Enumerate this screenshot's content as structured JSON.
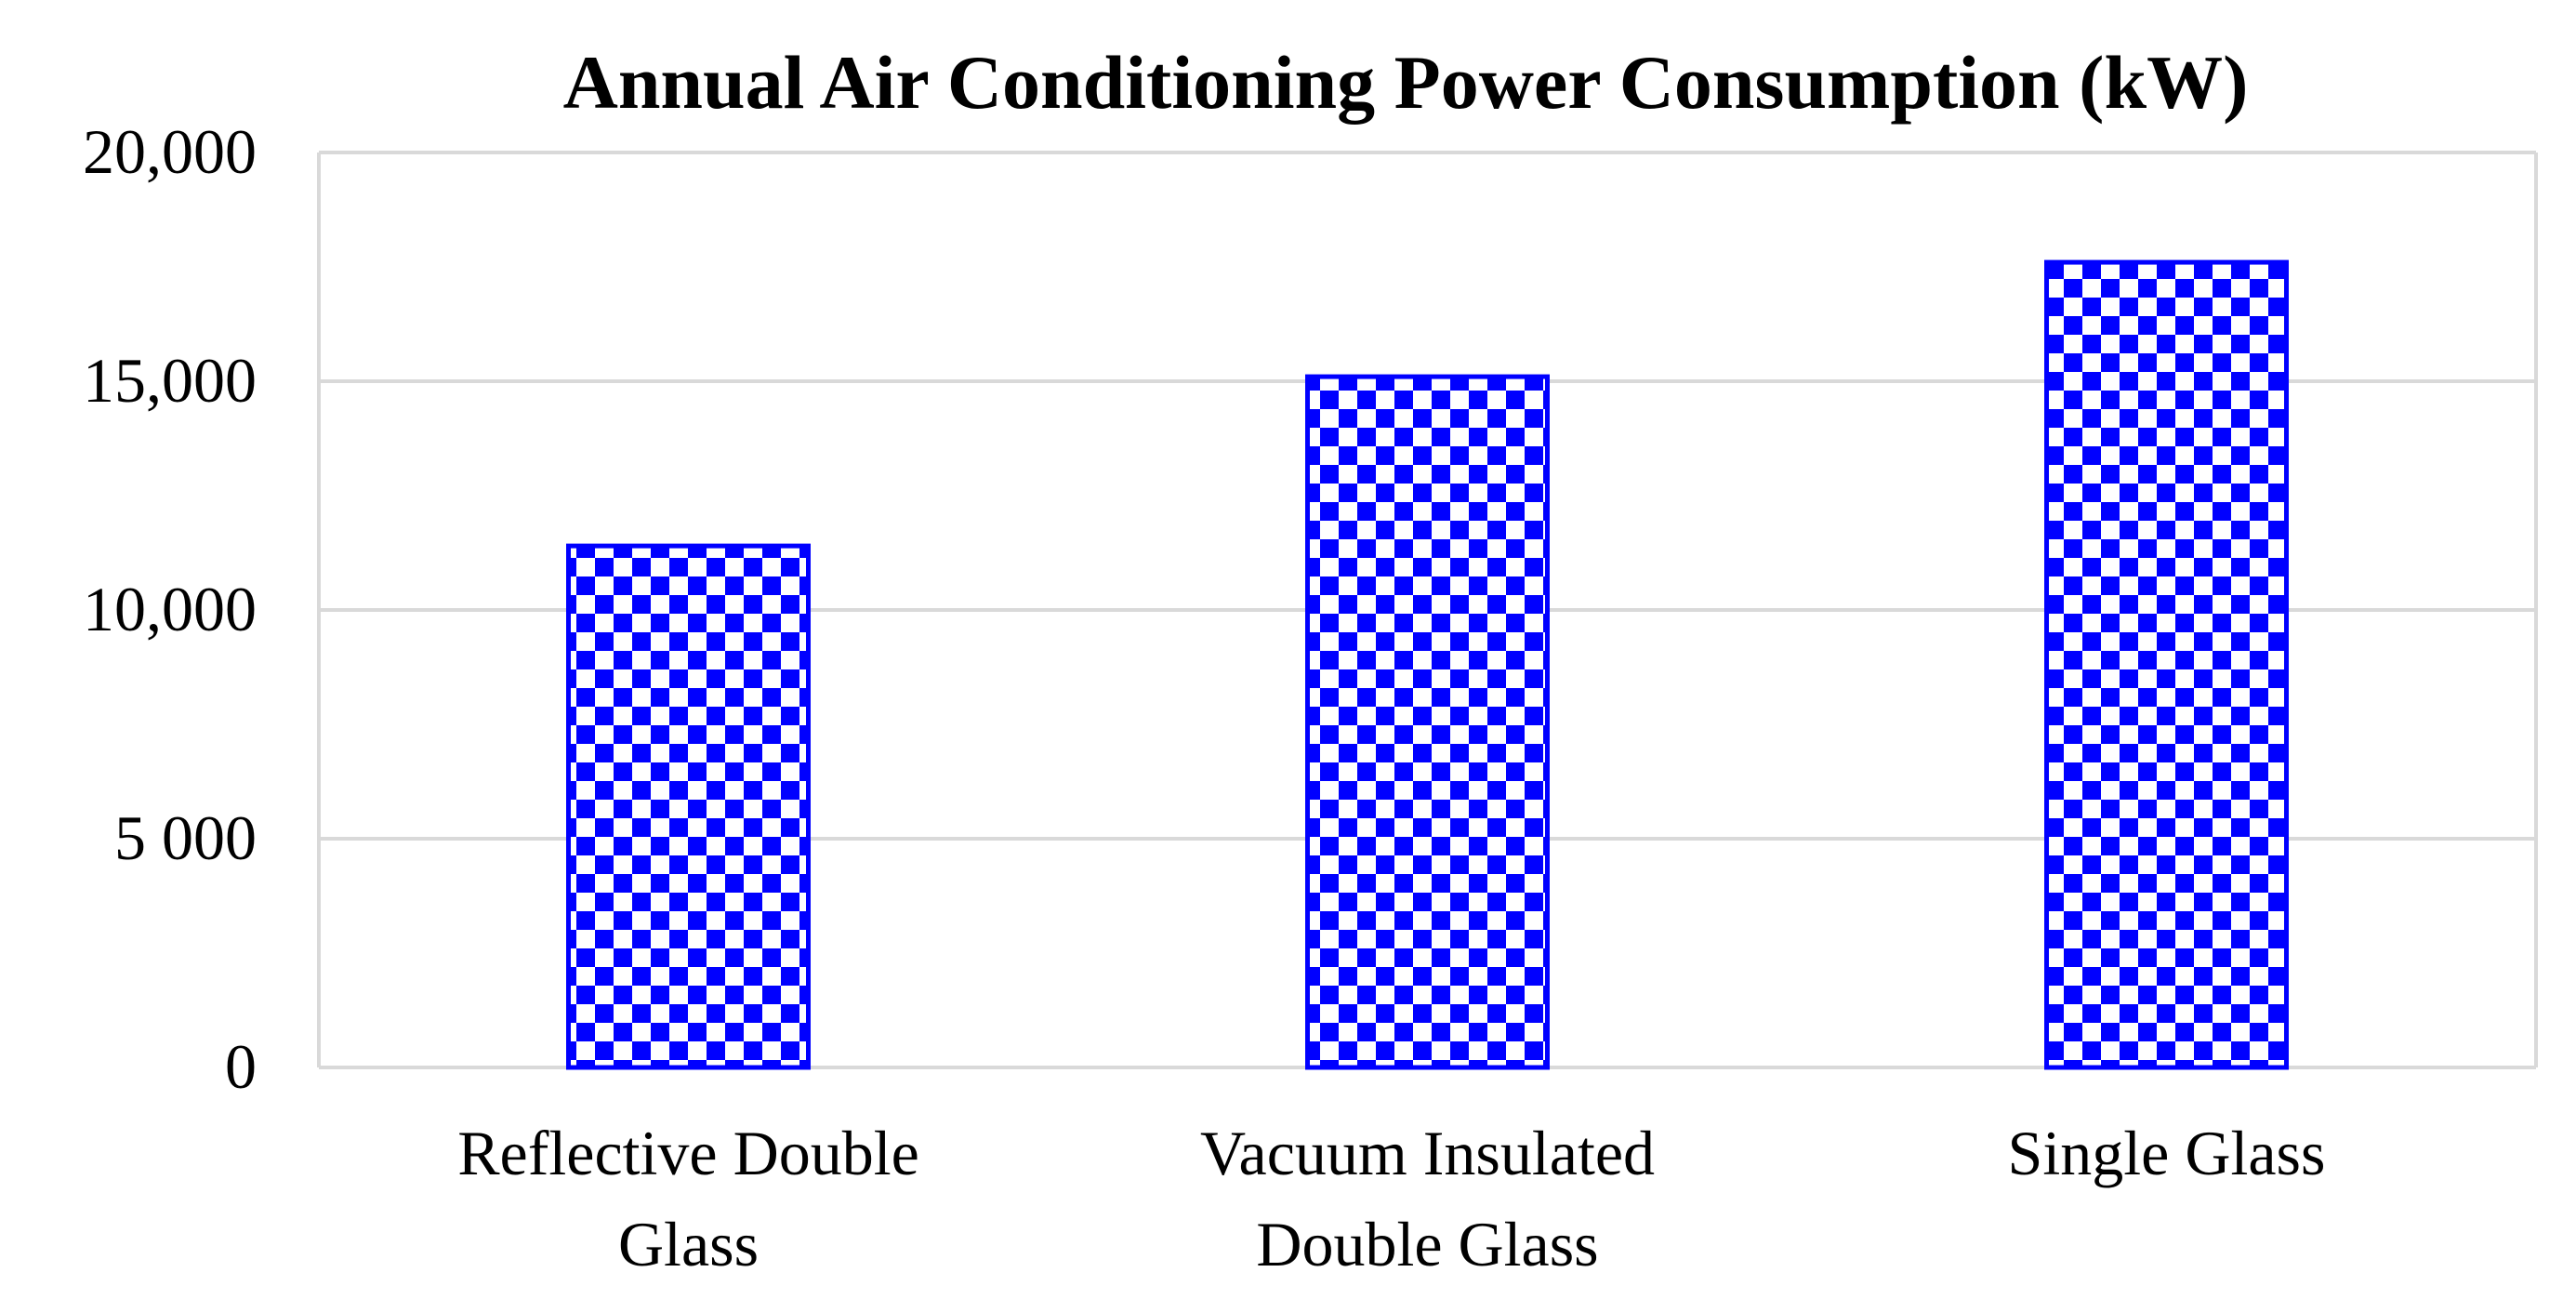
{
  "chart_data": {
    "type": "bar",
    "title": "Annual Air Conditioning Power Consumption  (kW)",
    "xlabel": "",
    "ylabel": "",
    "categories": [
      [
        "Reflective Double",
        "Glass"
      ],
      [
        "Vacuum Insulated",
        "Double Glass"
      ],
      [
        "Single Glass"
      ]
    ],
    "values": [
      11400,
      15100,
      17600
    ],
    "ylim": [
      0,
      20000
    ],
    "y_ticks": [
      {
        "value": 0,
        "label": "0"
      },
      {
        "value": 5000,
        "label": "5 000"
      },
      {
        "value": 10000,
        "label": "10,000"
      },
      {
        "value": 15000,
        "label": "15,000"
      },
      {
        "value": 20000,
        "label": "20,000"
      }
    ],
    "grid": true,
    "legend": "none",
    "bar_fill": "checkerboard",
    "colors": {
      "bar": "#0000ff",
      "bar_alt": "#ffffff",
      "gridline": "#d9d9d9",
      "text": "#000000"
    }
  }
}
